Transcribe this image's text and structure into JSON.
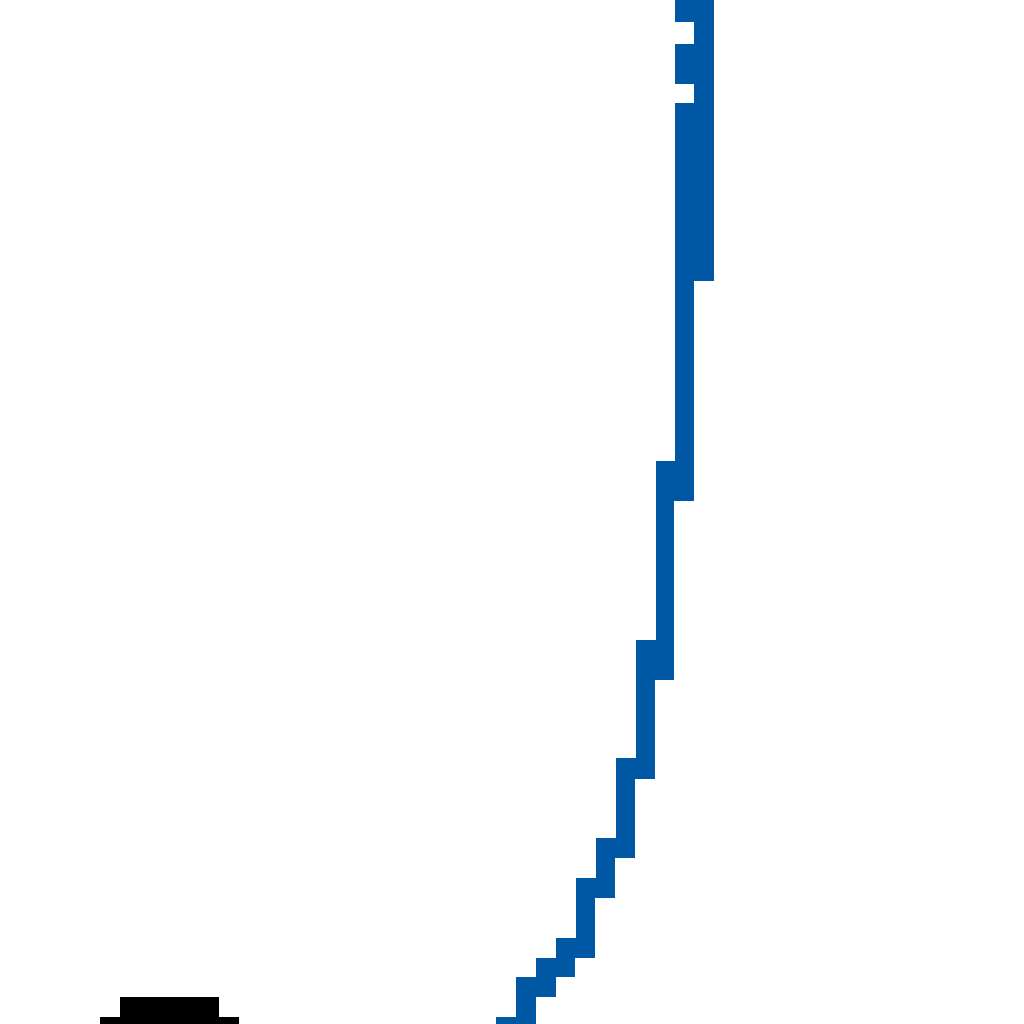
{
  "colors": {
    "background": "#ffffff",
    "blue_shape": "#0057a3",
    "black_shape": "#000000"
  },
  "shapes": {
    "blue": "pixel-staircase-curve",
    "black": "pixel-hat-silhouette"
  }
}
